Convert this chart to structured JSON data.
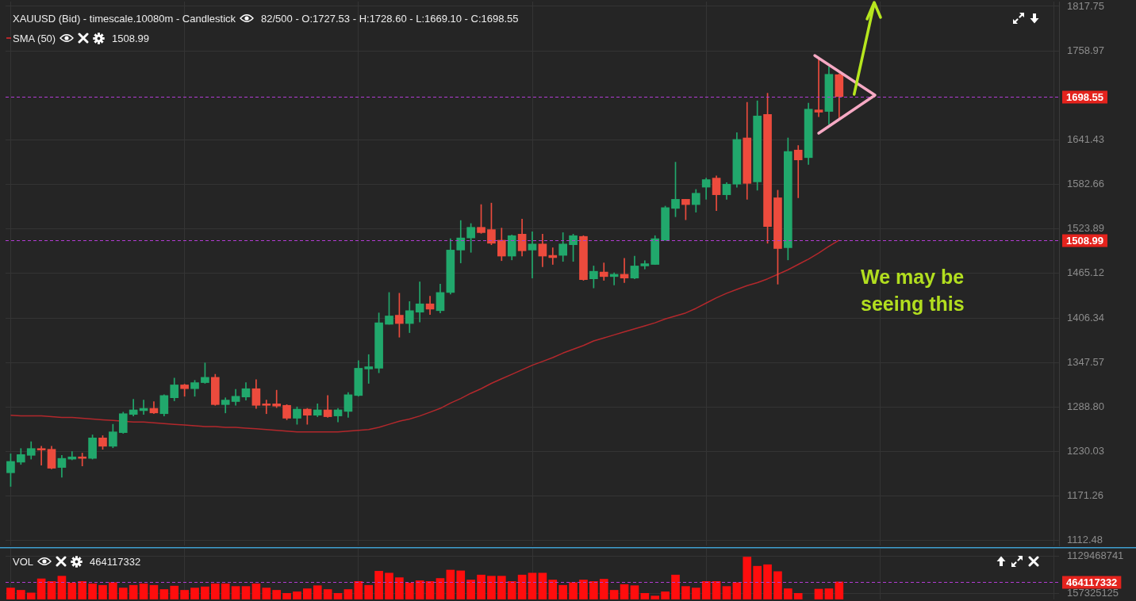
{
  "chart_data": [
    {
      "type": "candlestick",
      "title": "XAUUSD (Bid) - timescale.10080m - Candlestick",
      "subtitle": "82/500 - O:1727.53 - H:1728.60 - L:1669.10 - C:1698.55",
      "categories": [
        null,
        null,
        null,
        null,
        null,
        null,
        null,
        null,
        null,
        null,
        null,
        null,
        null,
        null,
        null,
        null,
        null,
        null,
        null,
        null,
        null,
        null,
        null,
        null,
        null,
        null,
        null,
        null,
        null,
        null,
        null,
        null,
        null,
        null,
        null,
        null,
        null,
        null,
        null,
        null,
        null,
        null,
        null,
        null,
        null,
        null,
        null,
        null,
        null,
        null,
        null,
        null,
        null,
        null,
        null,
        null,
        null,
        null,
        null,
        null,
        null,
        null,
        null,
        null,
        null,
        null,
        null,
        null,
        null,
        null,
        null,
        null,
        null,
        null,
        null,
        null,
        null,
        null,
        null,
        null,
        null,
        null,
        null,
        null,
        null,
        null,
        null,
        null,
        null,
        null,
        null,
        null,
        null,
        null,
        null,
        null,
        null,
        null,
        null,
        null,
        null,
        null,
        null
      ],
      "ohlc": [
        [
          1202,
          1227,
          1184,
          1217
        ],
        [
          1216,
          1234,
          1213,
          1226
        ],
        [
          1225,
          1243,
          1220,
          1234
        ],
        [
          1234,
          1237,
          1212,
          1232
        ],
        [
          1233,
          1237,
          1207,
          1208
        ],
        [
          1209,
          1225,
          1196,
          1221
        ],
        [
          1220,
          1230,
          1219,
          1223
        ],
        [
          1223,
          1228,
          1211,
          1221
        ],
        [
          1221,
          1252,
          1220,
          1248
        ],
        [
          1248,
          1251,
          1233,
          1237
        ],
        [
          1237,
          1266,
          1235,
          1256
        ],
        [
          1255,
          1282,
          1254,
          1280
        ],
        [
          1279,
          1299,
          1277,
          1285
        ],
        [
          1284,
          1298,
          1279,
          1287
        ],
        [
          1287,
          1296,
          1280,
          1281
        ],
        [
          1280,
          1305,
          1277,
          1304
        ],
        [
          1301,
          1327,
          1297,
          1318
        ],
        [
          1318,
          1319,
          1303,
          1313
        ],
        [
          1313,
          1324,
          1303,
          1321
        ],
        [
          1321,
          1347,
          1320,
          1328
        ],
        [
          1328,
          1332,
          1291,
          1292
        ],
        [
          1292,
          1301,
          1281,
          1298
        ],
        [
          1296,
          1312,
          1291,
          1303
        ],
        [
          1302,
          1321,
          1298,
          1313
        ],
        [
          1313,
          1325,
          1287,
          1291
        ],
        [
          1293,
          1298,
          1280,
          1291
        ],
        [
          1293,
          1311,
          1288,
          1290
        ],
        [
          1291,
          1292,
          1272,
          1274
        ],
        [
          1274,
          1289,
          1266,
          1286
        ],
        [
          1286,
          1287,
          1266,
          1278
        ],
        [
          1278,
          1293,
          1276,
          1285
        ],
        [
          1285,
          1304,
          1275,
          1276
        ],
        [
          1277,
          1287,
          1269,
          1285
        ],
        [
          1283,
          1308,
          1275,
          1305
        ],
        [
          1304,
          1350,
          1303,
          1340
        ],
        [
          1339,
          1358,
          1320,
          1342
        ],
        [
          1340,
          1413,
          1334,
          1400
        ],
        [
          1398,
          1440,
          1398,
          1409
        ],
        [
          1410,
          1439,
          1381,
          1399
        ],
        [
          1399,
          1428,
          1387,
          1416
        ],
        [
          1414,
          1454,
          1401,
          1425
        ],
        [
          1425,
          1435,
          1411,
          1418
        ],
        [
          1416,
          1451,
          1413,
          1440
        ],
        [
          1440,
          1511,
          1438,
          1496
        ],
        [
          1496,
          1535,
          1479,
          1512
        ],
        [
          1512,
          1531,
          1493,
          1526
        ],
        [
          1526,
          1556,
          1518,
          1519
        ],
        [
          1523,
          1558,
          1503,
          1505
        ],
        [
          1509,
          1525,
          1482,
          1488
        ],
        [
          1488,
          1516,
          1483,
          1515
        ],
        [
          1517,
          1537,
          1488,
          1495
        ],
        [
          1496,
          1520,
          1459,
          1504
        ],
        [
          1504,
          1517,
          1474,
          1488
        ],
        [
          1489,
          1499,
          1477,
          1486
        ],
        [
          1489,
          1519,
          1481,
          1504
        ],
        [
          1503,
          1517,
          1481,
          1515
        ],
        [
          1514,
          1515,
          1456,
          1457
        ],
        [
          1458,
          1475,
          1446,
          1468
        ],
        [
          1467,
          1479,
          1456,
          1461
        ],
        [
          1461,
          1466,
          1450,
          1464
        ],
        [
          1464,
          1485,
          1453,
          1459
        ],
        [
          1459,
          1488,
          1458,
          1475
        ],
        [
          1475,
          1482,
          1471,
          1478
        ],
        [
          1477,
          1515,
          1477,
          1511
        ],
        [
          1509,
          1554,
          1509,
          1552
        ],
        [
          1551,
          1612,
          1540,
          1563
        ],
        [
          1563,
          1563,
          1536,
          1556
        ],
        [
          1556,
          1576,
          1546,
          1571
        ],
        [
          1579,
          1591,
          1563,
          1589
        ],
        [
          1591,
          1594,
          1548,
          1569
        ],
        [
          1569,
          1585,
          1563,
          1583
        ],
        [
          1583,
          1651,
          1579,
          1642
        ],
        [
          1644,
          1691,
          1563,
          1584
        ],
        [
          1586,
          1693,
          1575,
          1673
        ],
        [
          1675,
          1703,
          1505,
          1527
        ],
        [
          1565,
          1575,
          1451,
          1498
        ],
        [
          1499,
          1644,
          1483,
          1626
        ],
        [
          1628,
          1634,
          1565,
          1615
        ],
        [
          1618,
          1690,
          1609,
          1682
        ],
        [
          1681,
          1748,
          1672,
          1678
        ],
        [
          1679,
          1738,
          1662,
          1728
        ],
        [
          1727.53,
          1728.6,
          1669.1,
          1698.55
        ],
        null,
        null,
        null,
        null,
        null,
        null,
        null,
        null,
        null,
        null,
        null,
        null,
        null,
        null,
        null,
        null,
        null,
        null,
        null,
        null,
        null
      ],
      "colors": [
        "#21a86c",
        "#21a86c",
        "#21a86c",
        "#ec4b3d",
        "#ec4b3d",
        "#21a86c",
        "#21a86c",
        "#ec4b3d",
        "#21a86c",
        "#ec4b3d",
        "#21a86c",
        "#21a86c",
        "#21a86c",
        "#21a86c",
        "#ec4b3d",
        "#21a86c",
        "#21a86c",
        "#ec4b3d",
        "#21a86c",
        "#21a86c",
        "#ec4b3d",
        "#21a86c",
        "#21a86c",
        "#21a86c",
        "#ec4b3d",
        "#ec4b3d",
        "#ec4b3d",
        "#ec4b3d",
        "#21a86c",
        "#ec4b3d",
        "#21a86c",
        "#ec4b3d",
        "#21a86c",
        "#21a86c",
        "#21a86c",
        "#21a86c",
        "#21a86c",
        "#21a86c",
        "#ec4b3d",
        "#21a86c",
        "#21a86c",
        "#ec4b3d",
        "#21a86c",
        "#21a86c",
        "#21a86c",
        "#21a86c",
        "#ec4b3d",
        "#ec4b3d",
        "#ec4b3d",
        "#21a86c",
        "#ec4b3d",
        "#21a86c",
        "#ec4b3d",
        "#ec4b3d",
        "#21a86c",
        "#21a86c",
        "#ec4b3d",
        "#21a86c",
        "#ec4b3d",
        "#21a86c",
        "#ec4b3d",
        "#21a86c",
        "#21a86c",
        "#21a86c",
        "#21a86c",
        "#21a86c",
        "#ec4b3d",
        "#21a86c",
        "#21a86c",
        "#ec4b3d",
        "#21a86c",
        "#21a86c",
        "#ec4b3d",
        "#21a86c",
        "#ec4b3d",
        "#ec4b3d",
        "#21a86c",
        "#ec4b3d",
        "#21a86c",
        "#ec4b3d",
        "#21a86c",
        "#ec4b3d",
        null,
        null,
        null,
        null,
        null,
        null,
        null,
        null,
        null,
        null,
        null,
        null,
        null,
        null,
        null,
        null,
        null,
        null,
        null,
        null,
        null
      ],
      "series": [
        {
          "name": "SMA (50)",
          "type": "line",
          "color": "#b3282c",
          "values": [
            1278,
            1277,
            1277,
            1277,
            1276,
            1275,
            1275,
            1274,
            1273,
            1272,
            1271,
            1270,
            1269,
            1269,
            1268,
            1267,
            1266,
            1265,
            1264,
            1263,
            1263,
            1262,
            1262,
            1261,
            1260,
            1259,
            1258,
            1257,
            1256,
            1256,
            1256,
            1256,
            1256,
            1257,
            1258,
            1259,
            1262,
            1266,
            1270,
            1273,
            1277,
            1282,
            1287,
            1294,
            1300,
            1307,
            1313,
            1320,
            1326,
            1332,
            1338,
            1344,
            1349,
            1354,
            1360,
            1365,
            1370,
            1376,
            1380,
            1384,
            1388,
            1392,
            1396,
            1400,
            1405,
            1409,
            1413,
            1419,
            1426,
            1433,
            1439,
            1444,
            1449,
            1453,
            1458,
            1464,
            1470,
            1477,
            1484,
            1492,
            1501,
            1509,
            null,
            null,
            null,
            null,
            null,
            null,
            null,
            null,
            null,
            null,
            null,
            null,
            null,
            null,
            null,
            null,
            null,
            null,
            null,
            null,
            null
          ]
        }
      ],
      "ylim": [
        1106,
        1824
      ],
      "yticks": [
        1112.48,
        1171.26,
        1230.03,
        {
          "value": 1288.8,
          "label": "1288.80"
        },
        1347.57,
        1406.34,
        1465.12,
        1523.89,
        1582.66,
        1641.43,
        1758.97,
        1817.75
      ],
      "ref_lines": [
        {
          "axis": "y",
          "value": 1698.55,
          "label": "1698.55",
          "color": "#b23bd3",
          "line_style": "dashed"
        },
        {
          "axis": "y",
          "value": 1508.99,
          "label": "1508.99",
          "color": "#b23bd3",
          "line_style": "dashed"
        }
      ],
      "annotations": [
        "1508.99",
        "We may be seeing this"
      ],
      "grid": true,
      "legend": "top left",
      "tick_labels": "y"
    },
    {
      "type": "bar",
      "title": "VOL",
      "categories": [
        null,
        null,
        null,
        null,
        null,
        null,
        null,
        null,
        null,
        null,
        null,
        null,
        null,
        null,
        null,
        null,
        null,
        null,
        null,
        null,
        null,
        null,
        null,
        null,
        null,
        null,
        null,
        null,
        null,
        null,
        null,
        null,
        null,
        null,
        null,
        null,
        null,
        null,
        null,
        null,
        null,
        null,
        null,
        null,
        null,
        null,
        null,
        null,
        null,
        null,
        null,
        null,
        null,
        null,
        null,
        null,
        null,
        null,
        null,
        null,
        null,
        null,
        null,
        null,
        null,
        null,
        null,
        null,
        null,
        null,
        null,
        null,
        null,
        null,
        null,
        null,
        null,
        null,
        null,
        null,
        null,
        null,
        null,
        null,
        null,
        null,
        null,
        null,
        null,
        null,
        null,
        null,
        null,
        null,
        null,
        null,
        null,
        null,
        null,
        null,
        null,
        null,
        null
      ],
      "values": [
        300000000,
        240000000,
        170000000,
        540000000,
        470000000,
        610000000,
        430000000,
        470000000,
        410000000,
        370000000,
        440000000,
        300000000,
        370000000,
        410000000,
        370000000,
        260000000,
        350000000,
        240000000,
        300000000,
        330000000,
        410000000,
        410000000,
        340000000,
        340000000,
        410000000,
        300000000,
        240000000,
        160000000,
        200000000,
        280000000,
        360000000,
        260000000,
        160000000,
        260000000,
        470000000,
        370000000,
        740000000,
        690000000,
        570000000,
        430000000,
        490000000,
        470000000,
        550000000,
        770000000,
        750000000,
        510000000,
        640000000,
        610000000,
        610000000,
        470000000,
        640000000,
        690000000,
        690000000,
        510000000,
        370000000,
        440000000,
        510000000,
        470000000,
        530000000,
        240000000,
        390000000,
        360000000,
        160000000,
        90000000,
        200000000,
        640000000,
        340000000,
        300000000,
        470000000,
        470000000,
        340000000,
        440000000,
        1110000000,
        870000000,
        910000000,
        730000000,
        280000000,
        160000000,
        null,
        270000000,
        280000000,
        460000000,
        null,
        null,
        null,
        null,
        null,
        null,
        null,
        null,
        null,
        null,
        null,
        null,
        null,
        null,
        null,
        null,
        null,
        null,
        null,
        null,
        null
      ],
      "color": "#ff0d0d",
      "ylim": [
        0,
        1330000000
      ],
      "yticks": [
        157325125,
        1129468741
      ],
      "ref_lines": [
        {
          "axis": "y",
          "value": 464117332,
          "label": "464117332",
          "color": "#b23bd3",
          "line_style": "dashed"
        }
      ],
      "annotations": [
        "464117332"
      ],
      "grid": true,
      "tick_labels": "y"
    }
  ]
}
